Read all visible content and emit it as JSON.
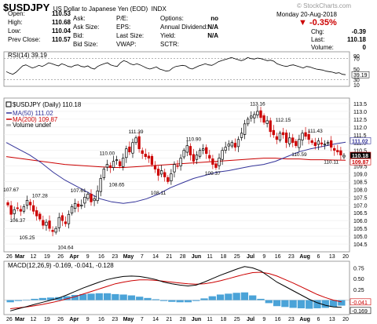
{
  "header": {
    "symbol": "$USDJPY",
    "description": "US Dollar to Japanese Yen (EOD)",
    "exchange": "INDX",
    "watermark": "© StockCharts.com",
    "date": "Monday  20-Aug-2018",
    "change_pct": "▼ -0.35%",
    "col1": [
      {
        "label": "Open:",
        "value": "110.53"
      },
      {
        "label": "High:",
        "value": "110.68"
      },
      {
        "label": "Low:",
        "value": "110.04"
      },
      {
        "label": "Prev Close:",
        "value": "110.57"
      }
    ],
    "col2": [
      {
        "label": "Ask:",
        "value": ""
      },
      {
        "label": "Ask Size:",
        "value": ""
      },
      {
        "label": "Bid:",
        "value": ""
      },
      {
        "label": "Bid Size:",
        "value": ""
      }
    ],
    "col3": [
      {
        "label": "P/E:",
        "value": ""
      },
      {
        "label": "EPS:",
        "value": ""
      },
      {
        "label": "Last Size:",
        "value": ""
      },
      {
        "label": "VWAP:",
        "value": ""
      }
    ],
    "col4": [
      {
        "label": "Options:",
        "value": "no"
      },
      {
        "label": "Annual Dividend:",
        "value": "N/A"
      },
      {
        "label": "Yield:",
        "value": "N/A"
      },
      {
        "label": "SCTR:",
        "value": ""
      }
    ],
    "col5": [
      {
        "label": "Chg:",
        "value": "-0.39"
      },
      {
        "label": "Last:",
        "value": "110.18"
      },
      {
        "label": "Volume:",
        "value": "0"
      }
    ]
  },
  "colors": {
    "up": "#000000",
    "down": "#cc0000",
    "ma50": "#333399",
    "ma200": "#cc0000",
    "hist": "#4aa3d8",
    "macd": "#000000",
    "signal": "#cc0000",
    "rsi": "#000000"
  },
  "chart_data": [
    {
      "type": "line",
      "panel": "rsi",
      "legend": "RSI(14) 39.19",
      "current": "39.19",
      "ylim": [
        20,
        80
      ],
      "ticks": [
        "90",
        "70",
        "50",
        "30",
        "10"
      ],
      "reference_lines": [
        70,
        30
      ],
      "values": [
        45,
        42,
        40,
        44,
        50,
        56,
        58,
        55,
        52,
        54,
        57,
        55,
        58,
        62,
        60,
        58,
        56,
        60,
        58,
        55,
        54,
        57,
        58,
        55,
        54,
        56,
        52,
        50,
        55,
        58,
        60,
        62,
        58,
        56,
        55,
        62,
        66,
        64,
        60,
        58,
        60,
        58,
        55,
        52,
        50,
        52,
        54,
        50,
        48,
        46,
        47,
        52,
        55,
        56,
        57,
        56,
        52,
        50,
        53,
        56,
        58,
        60,
        58,
        57,
        60,
        64,
        66,
        68,
        70,
        72,
        70,
        68,
        66,
        68,
        72,
        70,
        69,
        71,
        70,
        68,
        66,
        67,
        65,
        60,
        58,
        56,
        55,
        57,
        58,
        56,
        54,
        52,
        55,
        54,
        52,
        50,
        49,
        48,
        46,
        45,
        44,
        42,
        43,
        40,
        39.19
      ]
    },
    {
      "type": "candlestick",
      "panel": "price",
      "legend": [
        "$USDJPY (Daily) 110.18",
        "MA(50) 111.02",
        "MA(200) 109.87",
        "Volume undef"
      ],
      "ylim": [
        104.1,
        113.75
      ],
      "yticks": [
        "113.5",
        "113.0",
        "112.5",
        "112.0",
        "111.5",
        "111.0",
        "110.5",
        "110.0",
        "109.5",
        "109.0",
        "108.5",
        "108.0",
        "107.5",
        "107.0",
        "106.5",
        "106.0",
        "105.5",
        "105.0",
        "104.5"
      ],
      "right_labels": [
        {
          "text": "111.02",
          "value": 111.02
        },
        {
          "text": "110.18",
          "value": 110.18
        },
        {
          "text": "109.87",
          "value": 109.87
        }
      ],
      "close": [
        107.0,
        106.4,
        106.7,
        106.8,
        106.6,
        106.9,
        107.3,
        107.0,
        106.6,
        106.3,
        106.1,
        105.7,
        105.9,
        105.5,
        105.3,
        105.5,
        106.2,
        106.0,
        105.8,
        106.4,
        106.9,
        107.1,
        106.9,
        107.0,
        107.5,
        107.7,
        107.2,
        107.4,
        107.9,
        108.7,
        109.3,
        109.6,
        109.4,
        109.8,
        109.9,
        109.5,
        110.0,
        110.6,
        110.4,
        111.0,
        111.3,
        110.6,
        110.3,
        110.1,
        110.0,
        109.6,
        109.3,
        108.9,
        109.2,
        108.8,
        108.5,
        109.0,
        109.6,
        109.5,
        110.0,
        110.5,
        110.8,
        110.2,
        109.8,
        110.2,
        110.5,
        110.6,
        110.3,
        110.0,
        109.6,
        109.4,
        110.0,
        110.5,
        110.7,
        110.9,
        111.0,
        110.7,
        111.2,
        111.6,
        112.2,
        112.5,
        112.7,
        112.8,
        113.0,
        112.6,
        112.3,
        112.4,
        111.7,
        111.5,
        111.2,
        111.6,
        111.5,
        111.0,
        111.3,
        111.0,
        110.8,
        111.2,
        111.6,
        111.4,
        111.2,
        111.0,
        110.8,
        111.1,
        110.9,
        110.9,
        111.0,
        110.7,
        110.5,
        110.4,
        110.2,
        110.18
      ],
      "ma50": [
        111.0,
        110.6,
        110.2,
        109.7,
        109.1,
        108.6,
        108.2,
        107.8,
        107.4,
        107.2,
        107.1,
        107.2,
        107.4,
        107.7,
        108.1,
        108.4,
        108.7,
        108.9,
        109.1,
        109.2,
        109.35,
        109.5,
        109.6,
        109.8,
        110.1,
        110.4,
        110.6,
        110.75,
        110.9,
        111.02
      ],
      "ma200": [
        110.1,
        110.0,
        109.9,
        109.8,
        109.7,
        109.6,
        109.55,
        109.5,
        109.45,
        109.4,
        109.4,
        109.45,
        109.5,
        109.55,
        109.6,
        109.65,
        109.7,
        109.75,
        109.8,
        109.85,
        109.9,
        109.95,
        110.0,
        110.0,
        109.95,
        109.95,
        109.9,
        109.9,
        109.88,
        109.87
      ],
      "annotations": [
        {
          "text": "107.67",
          "value": 107.67,
          "above": true
        },
        {
          "text": "106.37",
          "value": 106.37,
          "above": false
        },
        {
          "text": "105.25",
          "value": 105.25,
          "above": false
        },
        {
          "text": "107.28",
          "value": 107.28,
          "above": true
        },
        {
          "text": "104.64",
          "value": 104.64,
          "above": false
        },
        {
          "text": "107.61",
          "value": 107.61,
          "above": true
        },
        {
          "text": "110.00",
          "value": 110.0,
          "above": true
        },
        {
          "text": "108.65",
          "value": 108.65,
          "above": false
        },
        {
          "text": "111.39",
          "value": 111.39,
          "above": true
        },
        {
          "text": "108.11",
          "value": 108.11,
          "above": false
        },
        {
          "text": "110.90",
          "value": 110.9,
          "above": true
        },
        {
          "text": "109.37",
          "value": 109.37,
          "above": false
        },
        {
          "text": "113.16",
          "value": 113.16,
          "above": true
        },
        {
          "text": "112.15",
          "value": 112.15,
          "above": true
        },
        {
          "text": "110.59",
          "value": 110.59,
          "above": false
        },
        {
          "text": "111.43",
          "value": 111.43,
          "above": true
        },
        {
          "text": "110.11",
          "value": 110.11,
          "above": false
        }
      ]
    },
    {
      "type": "bar+line",
      "panel": "macd",
      "legend": "MACD(12,26,9) -0.169, -0.041, -0.128",
      "ylim": [
        -0.3,
        0.85
      ],
      "yticks": [
        "0.75",
        "0.50",
        "0.25",
        "0.00",
        "-0.25"
      ],
      "right_labels": [
        {
          "text": "-0.041",
          "value": -0.041
        },
        {
          "text": "-0.169",
          "value": -0.169
        }
      ],
      "macd": [
        -0.25,
        -0.2,
        -0.15,
        -0.1,
        -0.05,
        0.0,
        0.05,
        0.12,
        0.2,
        0.28,
        0.35,
        0.42,
        0.48,
        0.52,
        0.55,
        0.56,
        0.55,
        0.52,
        0.48,
        0.42,
        0.38,
        0.35,
        0.33,
        0.35,
        0.42,
        0.5,
        0.58,
        0.65,
        0.72,
        0.78,
        0.75,
        0.68,
        0.55,
        0.42,
        0.32,
        0.22,
        0.12,
        0.02,
        -0.06,
        -0.12,
        -0.16,
        -0.169
      ],
      "signal": [
        -0.2,
        -0.18,
        -0.16,
        -0.13,
        -0.1,
        -0.06,
        -0.02,
        0.03,
        0.08,
        0.14,
        0.2,
        0.26,
        0.32,
        0.38,
        0.42,
        0.45,
        0.47,
        0.47,
        0.46,
        0.44,
        0.42,
        0.4,
        0.38,
        0.37,
        0.38,
        0.41,
        0.45,
        0.5,
        0.55,
        0.6,
        0.64,
        0.65,
        0.62,
        0.56,
        0.48,
        0.4,
        0.31,
        0.22,
        0.13,
        0.06,
        0.0,
        -0.041
      ]
    }
  ],
  "x_axis": {
    "labels": [
      {
        "text": "26",
        "bold": false
      },
      {
        "text": "Mar",
        "bold": true
      },
      {
        "text": "12",
        "bold": false
      },
      {
        "text": "19",
        "bold": false
      },
      {
        "text": "26",
        "bold": false
      },
      {
        "text": "Apr",
        "bold": true
      },
      {
        "text": "9",
        "bold": false
      },
      {
        "text": "16",
        "bold": false
      },
      {
        "text": "23",
        "bold": false
      },
      {
        "text": "May",
        "bold": true
      },
      {
        "text": "7",
        "bold": false
      },
      {
        "text": "14",
        "bold": false
      },
      {
        "text": "21",
        "bold": false
      },
      {
        "text": "28",
        "bold": false
      },
      {
        "text": "Jun",
        "bold": true
      },
      {
        "text": "11",
        "bold": false
      },
      {
        "text": "18",
        "bold": false
      },
      {
        "text": "25",
        "bold": false
      },
      {
        "text": "Jul",
        "bold": true
      },
      {
        "text": "9",
        "bold": false
      },
      {
        "text": "16",
        "bold": false
      },
      {
        "text": "23",
        "bold": false
      },
      {
        "text": "Aug",
        "bold": true
      },
      {
        "text": "6",
        "bold": false
      },
      {
        "text": "13",
        "bold": false
      },
      {
        "text": "20",
        "bold": false
      }
    ]
  }
}
